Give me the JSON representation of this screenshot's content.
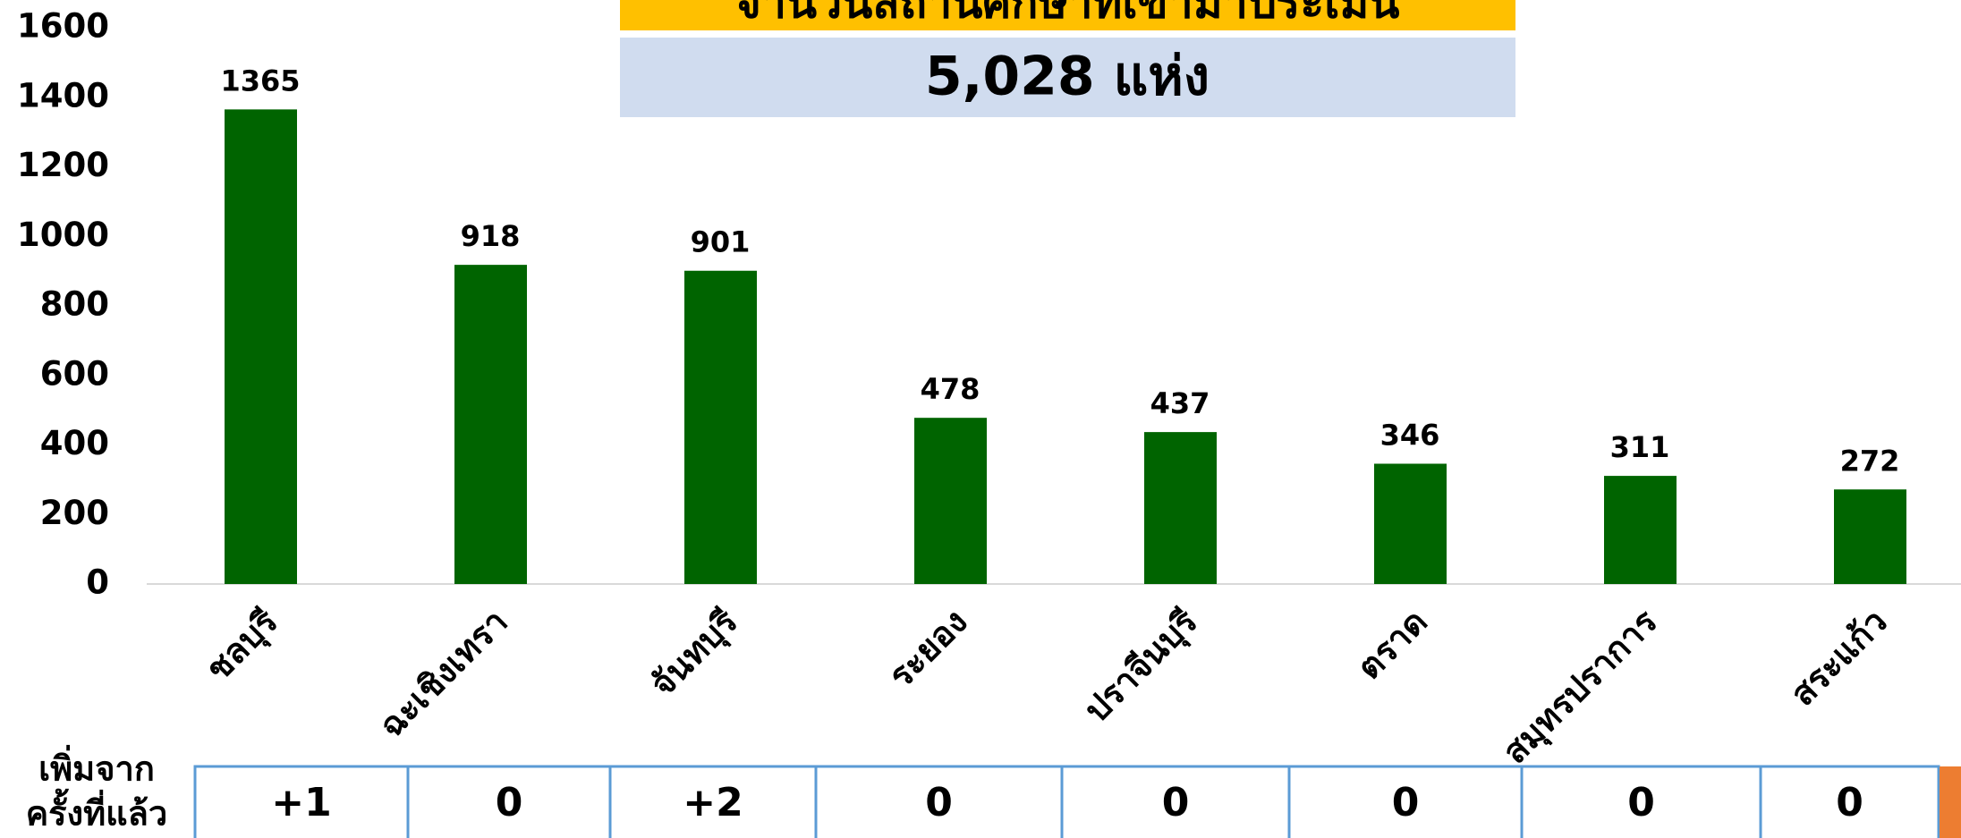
{
  "chart_data": {
    "type": "bar",
    "title": "จำนวนสถานศึกษาที่เข้ามาประเมิน",
    "subtitle": "5,028 แห่ง",
    "categories": [
      "ชลบุรี",
      "ฉะเชิงเทรา",
      "จันทบุรี",
      "ระยอง",
      "ปราจีนบุรี",
      "ตราด",
      "สมุทรปราการ",
      "สระแก้ว"
    ],
    "values": [
      1365,
      918,
      901,
      478,
      437,
      346,
      311,
      272
    ],
    "color": "#006400",
    "ylim": [
      0,
      1600
    ],
    "yticks": [
      0,
      200,
      400,
      600,
      800,
      1000,
      1200,
      1400,
      1600
    ],
    "grid": false,
    "changes": {
      "label_lines": [
        "เพิ่มจาก",
        "ครั้งที่แล้ว"
      ],
      "values": [
        "+1",
        "0",
        "+2",
        "0",
        "0",
        "0",
        "0",
        "0"
      ]
    }
  }
}
